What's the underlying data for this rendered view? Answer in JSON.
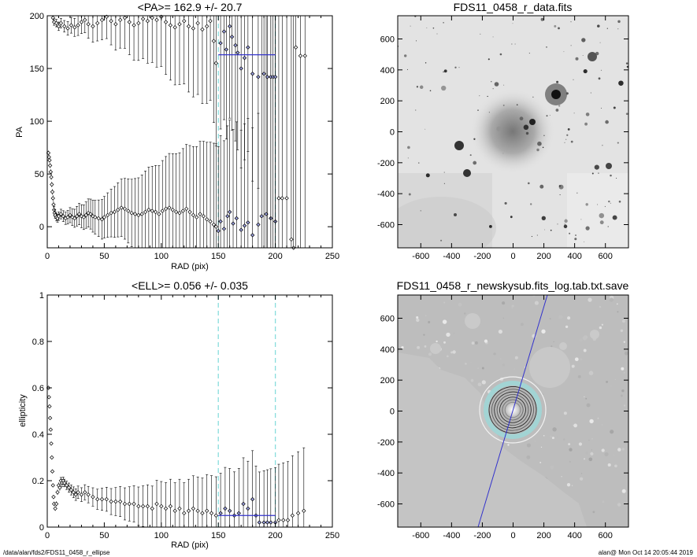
{
  "footer": {
    "path": "/data/alan/fds2/FDS11_0458_r_ellipse",
    "stamp": "alan@  Mon Oct 14 20:05:44 2019"
  },
  "colors": {
    "mean_line": "#3333cc",
    "annulus": "#88dddd",
    "axis": "#000000"
  },
  "chart_data": [
    {
      "id": "pa",
      "type": "scatter",
      "title": "<PA>= 162.9 +/-  20.7",
      "xlabel": "RAD (pix)",
      "ylabel": "PA",
      "xlim": [
        0,
        250
      ],
      "ylim": [
        -20,
        200
      ],
      "xticks": [
        0,
        50,
        100,
        150,
        200,
        250
      ],
      "yticks": [
        0,
        50,
        100,
        150,
        200
      ],
      "vlines": [
        150,
        200
      ],
      "mean": {
        "value": 163,
        "from": 150,
        "to": 200
      },
      "points": [
        [
          1,
          70
        ],
        [
          1.5,
          66
        ],
        [
          2,
          63
        ],
        [
          2.5,
          58
        ],
        [
          3,
          52
        ],
        [
          3.5,
          47
        ],
        [
          4,
          40
        ],
        [
          4.5,
          33
        ],
        [
          5,
          27
        ],
        [
          5.5,
          21
        ],
        [
          6,
          16
        ],
        [
          6.5,
          13
        ],
        [
          7,
          11
        ],
        [
          8,
          9
        ],
        [
          9,
          8
        ],
        [
          10,
          10
        ],
        [
          12,
          12
        ],
        [
          14,
          10
        ],
        [
          16,
          8
        ],
        [
          18,
          9
        ],
        [
          20,
          11
        ],
        [
          22,
          9
        ],
        [
          24,
          8
        ],
        [
          26,
          10
        ],
        [
          28,
          12
        ],
        [
          30,
          10
        ],
        [
          32,
          9
        ],
        [
          34,
          11
        ],
        [
          36,
          13
        ],
        [
          38,
          12
        ],
        [
          40,
          10
        ],
        [
          42,
          9
        ],
        [
          45,
          8
        ],
        [
          48,
          7
        ],
        [
          50,
          9
        ],
        [
          53,
          11
        ],
        [
          56,
          13
        ],
        [
          59,
          14
        ],
        [
          62,
          16
        ],
        [
          65,
          18
        ],
        [
          68,
          17
        ],
        [
          71,
          15
        ],
        [
          74,
          13
        ],
        [
          77,
          12
        ],
        [
          80,
          11
        ],
        [
          83,
          12
        ],
        [
          86,
          14
        ],
        [
          89,
          16
        ],
        [
          92,
          15
        ],
        [
          95,
          14
        ],
        [
          98,
          12
        ],
        [
          101,
          15
        ],
        [
          104,
          17
        ],
        [
          107,
          18
        ],
        [
          110,
          16
        ],
        [
          113,
          14
        ],
        [
          116,
          13
        ],
        [
          119,
          15
        ],
        [
          122,
          17
        ],
        [
          125,
          14
        ],
        [
          128,
          11
        ],
        [
          131,
          9
        ],
        [
          134,
          12
        ],
        [
          137,
          10
        ],
        [
          140,
          7
        ],
        [
          143,
          5
        ],
        [
          146,
          2
        ],
        [
          148,
          0
        ],
        [
          150,
          -4
        ],
        [
          152,
          5
        ],
        [
          155,
          -2
        ],
        [
          158,
          10
        ],
        [
          160,
          14
        ],
        [
          163,
          3
        ],
        [
          166,
          8
        ],
        [
          170,
          -3
        ],
        [
          173,
          1
        ],
        [
          176,
          4
        ],
        [
          180,
          -8
        ],
        [
          185,
          2
        ],
        [
          188,
          10
        ],
        [
          192,
          12
        ],
        [
          196,
          8
        ],
        [
          200,
          5
        ]
      ],
      "points_wrapped": [
        [
          5,
          198
        ],
        [
          6,
          194
        ],
        [
          8,
          193
        ],
        [
          10,
          190
        ],
        [
          12,
          193
        ],
        [
          15,
          190
        ],
        [
          18,
          188
        ],
        [
          21,
          191
        ],
        [
          24,
          189
        ],
        [
          27,
          191
        ],
        [
          30,
          194
        ],
        [
          33,
          196
        ],
        [
          36,
          192
        ],
        [
          40,
          190
        ],
        [
          44,
          193
        ],
        [
          48,
          196
        ],
        [
          52,
          199
        ],
        [
          56,
          195
        ],
        [
          60,
          192
        ],
        [
          64,
          196
        ],
        [
          68,
          198
        ],
        [
          72,
          194
        ],
        [
          76,
          191
        ],
        [
          80,
          193
        ],
        [
          84,
          197
        ],
        [
          88,
          195
        ],
        [
          92,
          198
        ],
        [
          96,
          196
        ],
        [
          100,
          199
        ],
        [
          104,
          194
        ],
        [
          108,
          191
        ],
        [
          112,
          189
        ],
        [
          116,
          192
        ],
        [
          120,
          195
        ],
        [
          124,
          190
        ],
        [
          128,
          188
        ],
        [
          132,
          193
        ],
        [
          136,
          187
        ],
        [
          140,
          190
        ],
        [
          143,
          195
        ],
        [
          146,
          176
        ],
        [
          148,
          155
        ],
        [
          152,
          174
        ],
        [
          155,
          185
        ],
        [
          157,
          168
        ],
        [
          160,
          190
        ],
        [
          162,
          180
        ],
        [
          165,
          172
        ],
        [
          167,
          165
        ],
        [
          170,
          150
        ],
        [
          173,
          160
        ],
        [
          176,
          170
        ],
        [
          180,
          145
        ],
        [
          185,
          142
        ],
        [
          190,
          145
        ],
        [
          193,
          142
        ],
        [
          196,
          142
        ],
        [
          198,
          142
        ],
        [
          200,
          142
        ],
        [
          203,
          27
        ],
        [
          206,
          27
        ],
        [
          210,
          27
        ],
        [
          214,
          -12
        ],
        [
          216,
          -20
        ],
        [
          218,
          170
        ],
        [
          222,
          162
        ],
        [
          226,
          162
        ]
      ]
    },
    {
      "id": "ell",
      "type": "scatter",
      "title": "<ELL>= 0.056 +/-  0.035",
      "xlabel": "RAD (pix)",
      "ylabel": "ellipticity",
      "xlim": [
        0,
        250
      ],
      "ylim": [
        0,
        1.0
      ],
      "xticks": [
        0,
        50,
        100,
        150,
        200,
        250
      ],
      "yticks": [
        0,
        0.2,
        0.4,
        0.6,
        0.8,
        1.0
      ],
      "vlines": [
        150,
        200
      ],
      "mean": {
        "value": 0.05,
        "from": 150,
        "to": 200
      },
      "points": [
        [
          1,
          0.6
        ],
        [
          1.5,
          0.56
        ],
        [
          2,
          0.52
        ],
        [
          2.5,
          0.47
        ],
        [
          3,
          0.42
        ],
        [
          3.5,
          0.36
        ],
        [
          4,
          0.3
        ],
        [
          4.5,
          0.24
        ],
        [
          5,
          0.18
        ],
        [
          5.5,
          0.13
        ],
        [
          6,
          0.1
        ],
        [
          7,
          0.08
        ],
        [
          8,
          0.1
        ],
        [
          9,
          0.15
        ],
        [
          10,
          0.18
        ],
        [
          11,
          0.17
        ],
        [
          12,
          0.2
        ],
        [
          13,
          0.19
        ],
        [
          14,
          0.2
        ],
        [
          15,
          0.19
        ],
        [
          17,
          0.18
        ],
        [
          19,
          0.17
        ],
        [
          21,
          0.16
        ],
        [
          23,
          0.15
        ],
        [
          25,
          0.14
        ],
        [
          27,
          0.15
        ],
        [
          30,
          0.14
        ],
        [
          33,
          0.15
        ],
        [
          36,
          0.14
        ],
        [
          40,
          0.13
        ],
        [
          44,
          0.12
        ],
        [
          48,
          0.12
        ],
        [
          52,
          0.12
        ],
        [
          56,
          0.11
        ],
        [
          60,
          0.11
        ],
        [
          64,
          0.11
        ],
        [
          68,
          0.1
        ],
        [
          72,
          0.1
        ],
        [
          76,
          0.1
        ],
        [
          80,
          0.09
        ],
        [
          84,
          0.09
        ],
        [
          88,
          0.09
        ],
        [
          92,
          0.08
        ],
        [
          96,
          0.1
        ],
        [
          100,
          0.09
        ],
        [
          104,
          0.08
        ],
        [
          108,
          0.09
        ],
        [
          112,
          0.07
        ],
        [
          116,
          0.08
        ],
        [
          120,
          0.06
        ],
        [
          124,
          0.07
        ],
        [
          128,
          0.08
        ],
        [
          132,
          0.07
        ],
        [
          136,
          0.06
        ],
        [
          140,
          0.07
        ],
        [
          144,
          0.06
        ],
        [
          148,
          0.05
        ],
        [
          152,
          0.06
        ],
        [
          156,
          0.08
        ],
        [
          160,
          0.07
        ],
        [
          164,
          0.05
        ],
        [
          168,
          0.06
        ],
        [
          172,
          0.1
        ],
        [
          176,
          0.08
        ],
        [
          180,
          0.12
        ],
        [
          183,
          0.05
        ],
        [
          186,
          0.02
        ],
        [
          190,
          0.02
        ],
        [
          193,
          0.02
        ],
        [
          196,
          0.02
        ],
        [
          200,
          0.02
        ],
        [
          203,
          0.03
        ],
        [
          207,
          0.03
        ],
        [
          211,
          0.03
        ],
        [
          215,
          0.05
        ],
        [
          220,
          0.06
        ],
        [
          225,
          0.07
        ]
      ]
    }
  ],
  "images": [
    {
      "id": "data",
      "title": "FDS11_0458_r_data.fits",
      "xlim": [
        -750,
        750
      ],
      "ylim": [
        -750,
        750
      ],
      "xticks": [
        -600,
        -400,
        -200,
        0,
        200,
        400,
        600
      ],
      "yticks": [
        -600,
        -400,
        -200,
        0,
        200,
        400,
        600
      ]
    },
    {
      "id": "model",
      "title": "FDS11_0458_r_newskysub.fits_log.tab.txt.save",
      "xlim": [
        -750,
        750
      ],
      "ylim": [
        -750,
        750
      ],
      "xticks": [
        -600,
        -400,
        -200,
        0,
        200,
        400,
        600
      ],
      "yticks": [
        -600,
        -400,
        -200,
        0,
        200,
        400,
        600
      ]
    }
  ]
}
